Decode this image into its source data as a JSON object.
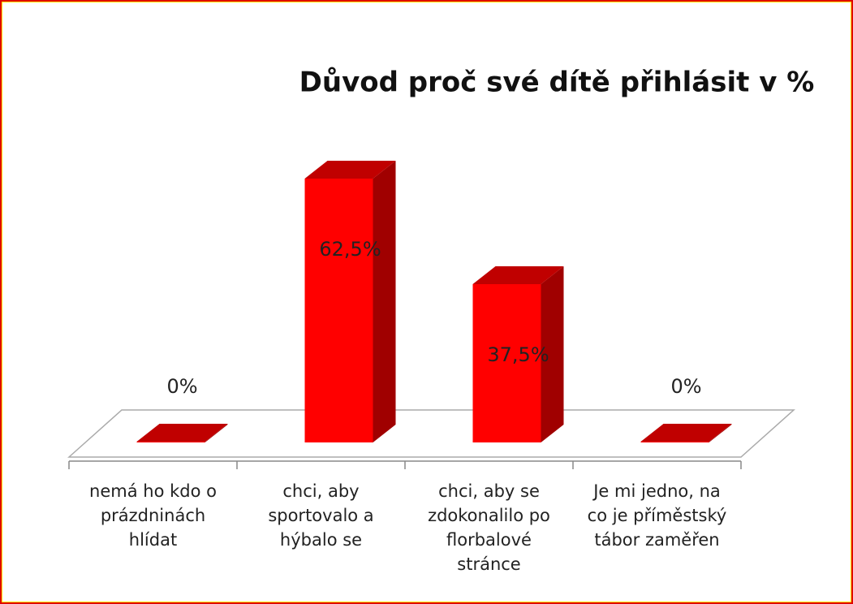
{
  "chart_data": {
    "type": "bar3d",
    "title": "Důvod proč své dítě přihlásit v %",
    "categories": [
      "nemá ho kdo o prázdninách hlídat",
      "chci, aby sportovalo a hýbalo se",
      "chci, aby se zdokonalilo po florbalové stránce",
      "Je mi jedno, na co je příměstský tábor zaměřen"
    ],
    "values": [
      0,
      62.5,
      37.5,
      0
    ],
    "value_labels": [
      "0%",
      "62,5%",
      "37,5%",
      "0%"
    ],
    "color": "#ff0000"
  }
}
